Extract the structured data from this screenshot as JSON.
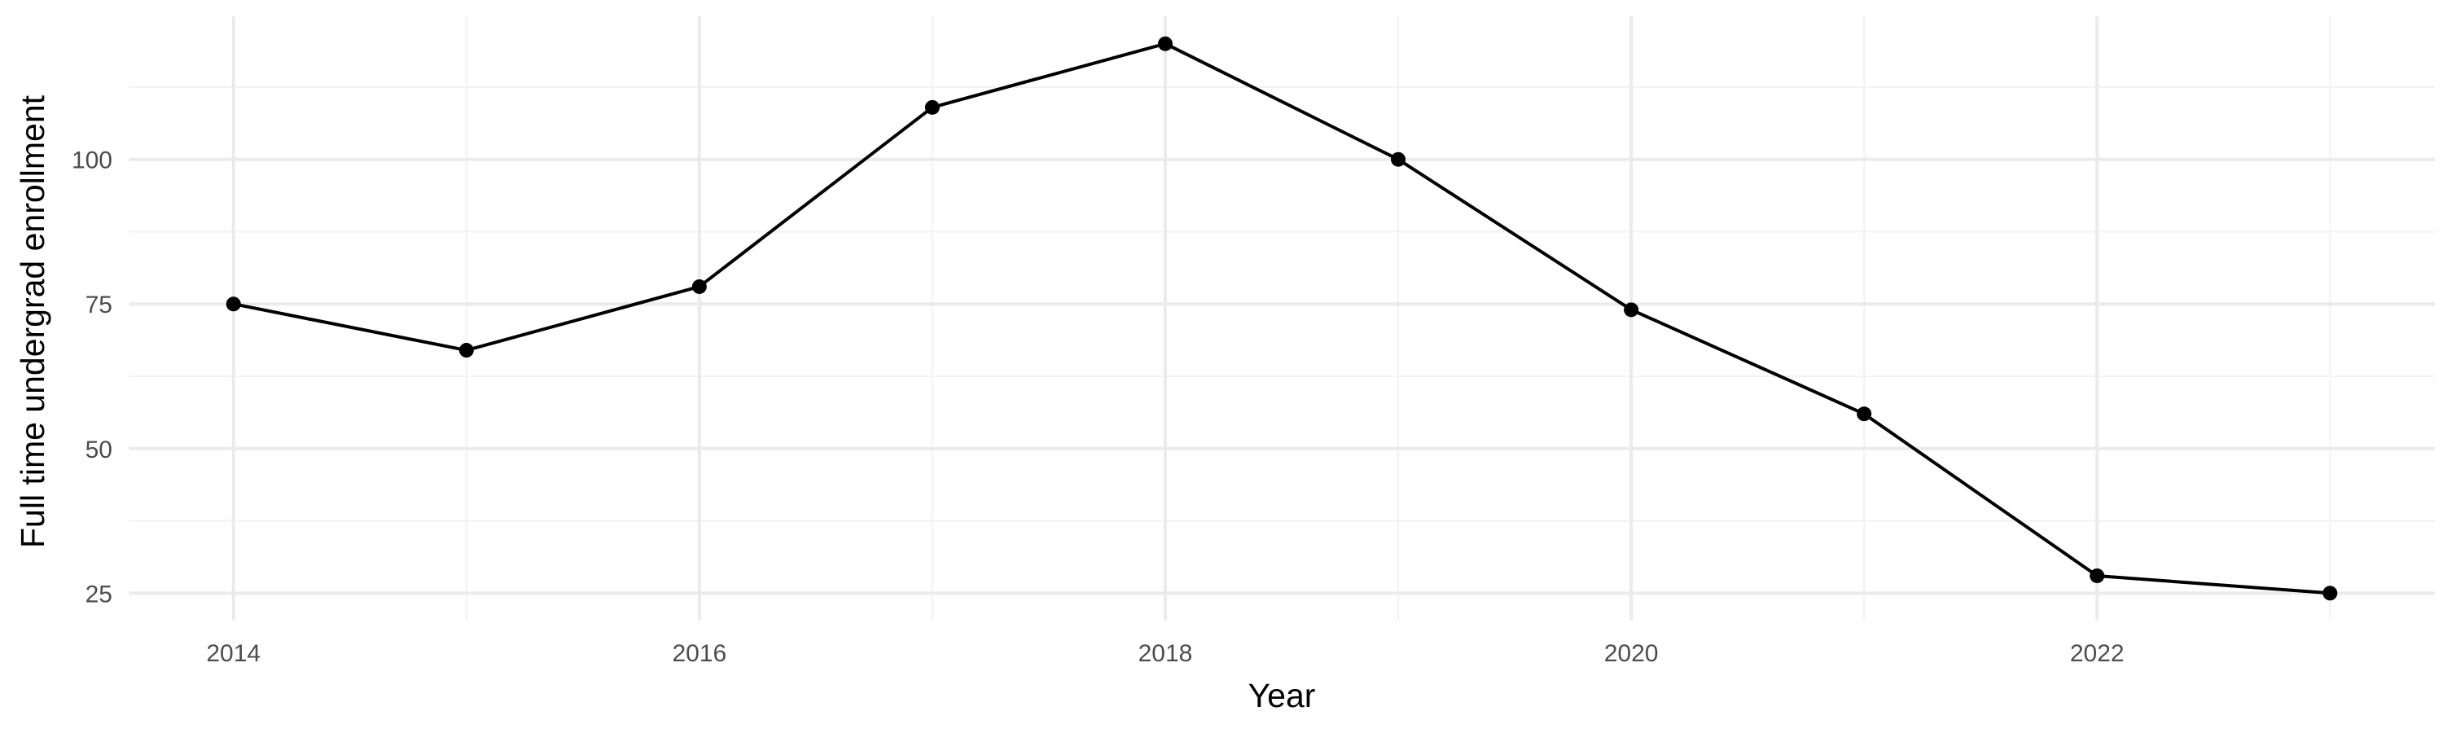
{
  "chart_data": {
    "type": "line",
    "title": "",
    "xlabel": "Year",
    "ylabel": "Full time undergrad enrollment",
    "x": [
      2014,
      2015,
      2016,
      2017,
      2018,
      2019,
      2020,
      2021,
      2022,
      2023
    ],
    "series": [
      {
        "values": [
          75,
          67,
          78,
          109,
          120,
          100,
          74,
          56,
          28,
          25
        ]
      }
    ],
    "x_ticks": [
      2014,
      2016,
      2018,
      2020,
      2022
    ],
    "x_tick_labels": [
      "2014",
      "2016",
      "2018",
      "2020",
      "2022"
    ],
    "y_ticks": [
      25,
      50,
      75,
      100
    ],
    "y_tick_labels": [
      "25",
      "50",
      "75",
      "100"
    ],
    "xlim": [
      2013.55,
      2023.45
    ],
    "ylim": [
      20.25,
      124.75
    ],
    "grid": true,
    "legend": "none",
    "colors": {
      "line": "#000000",
      "point": "#000000",
      "grid_major": "#ebebeb",
      "grid_minor": "#f2f2f2",
      "tick_label": "#4d4d4d",
      "axis_title": "#000000"
    }
  }
}
